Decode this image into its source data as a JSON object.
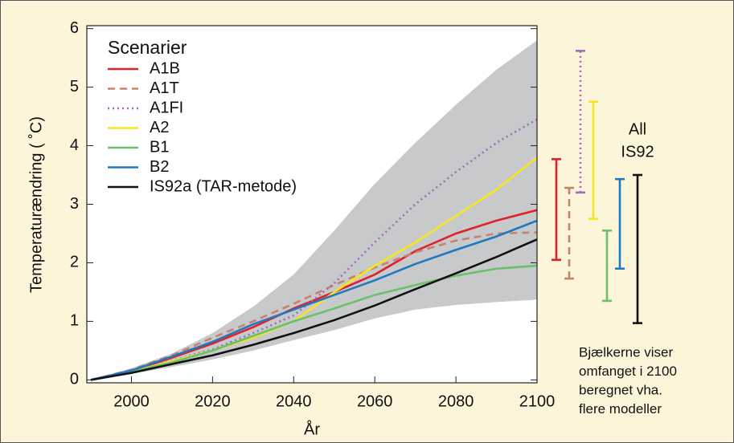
{
  "chart_data": {
    "type": "line",
    "xlabel": "År",
    "ylabel": "Temperaturændring ( ˚C)",
    "legend_title": "Scenarier",
    "x": [
      1990,
      2000,
      2010,
      2020,
      2030,
      2040,
      2050,
      2060,
      2070,
      2080,
      2090,
      2100
    ],
    "xlim": [
      1989,
      2100
    ],
    "xticks": [
      2000,
      2020,
      2040,
      2060,
      2080,
      2100
    ],
    "ylim": [
      -0.05,
      6.05
    ],
    "yticks": [
      0,
      1,
      2,
      3,
      4,
      5,
      6
    ],
    "envelope": {
      "color": "#c8c9cb",
      "upper": [
        0,
        0.2,
        0.45,
        0.8,
        1.25,
        1.8,
        2.55,
        3.35,
        4.05,
        4.7,
        5.3,
        5.8
      ],
      "lower": [
        0,
        0.1,
        0.22,
        0.35,
        0.5,
        0.68,
        0.85,
        1.05,
        1.2,
        1.28,
        1.33,
        1.37
      ]
    },
    "series": [
      {
        "name": "A1B",
        "color": "#e0202a",
        "style": "solid",
        "values": [
          0,
          0.15,
          0.38,
          0.62,
          0.9,
          1.22,
          1.5,
          1.8,
          2.2,
          2.5,
          2.72,
          2.9
        ],
        "range": [
          2.05,
          3.77
        ]
      },
      {
        "name": "A1T",
        "color": "#c8826a",
        "style": "dashed",
        "values": [
          0,
          0.17,
          0.42,
          0.72,
          1.0,
          1.3,
          1.62,
          1.92,
          2.18,
          2.38,
          2.5,
          2.52
        ],
        "range": [
          1.73,
          3.28
        ]
      },
      {
        "name": "A1FI",
        "color": "#a36ab8",
        "style": "dotted",
        "values": [
          0,
          0.14,
          0.33,
          0.52,
          0.8,
          1.1,
          1.65,
          2.35,
          3.0,
          3.55,
          4.05,
          4.45
        ],
        "range": [
          3.2,
          5.62
        ]
      },
      {
        "name": "A2",
        "color": "#f5e61e",
        "style": "solid",
        "values": [
          0,
          0.14,
          0.32,
          0.5,
          0.72,
          1.0,
          1.5,
          1.95,
          2.35,
          2.8,
          3.25,
          3.8
        ],
        "range": [
          2.75,
          4.75
        ]
      },
      {
        "name": "B1",
        "color": "#6cc06a",
        "style": "solid",
        "values": [
          0,
          0.14,
          0.3,
          0.5,
          0.75,
          1.0,
          1.22,
          1.45,
          1.62,
          1.78,
          1.9,
          1.95
        ],
        "range": [
          1.35,
          2.55
        ]
      },
      {
        "name": "B2",
        "color": "#1f78c0",
        "style": "solid",
        "values": [
          0,
          0.16,
          0.4,
          0.65,
          0.95,
          1.2,
          1.45,
          1.7,
          1.98,
          2.22,
          2.45,
          2.72
        ],
        "range": [
          1.9,
          3.43
        ]
      },
      {
        "name": "IS92a (TAR-metode)",
        "color": "#111111",
        "style": "solid",
        "values": [
          0,
          0.12,
          0.27,
          0.42,
          0.6,
          0.8,
          1.02,
          1.27,
          1.55,
          1.82,
          2.1,
          2.4
        ],
        "range": [
          0.97,
          3.5
        ],
        "range_label": [
          "All",
          "IS92"
        ]
      }
    ],
    "note": [
      "Bjælkerne viser",
      "omfanget i 2100",
      "beregnet vha.",
      "flere modeller"
    ]
  }
}
